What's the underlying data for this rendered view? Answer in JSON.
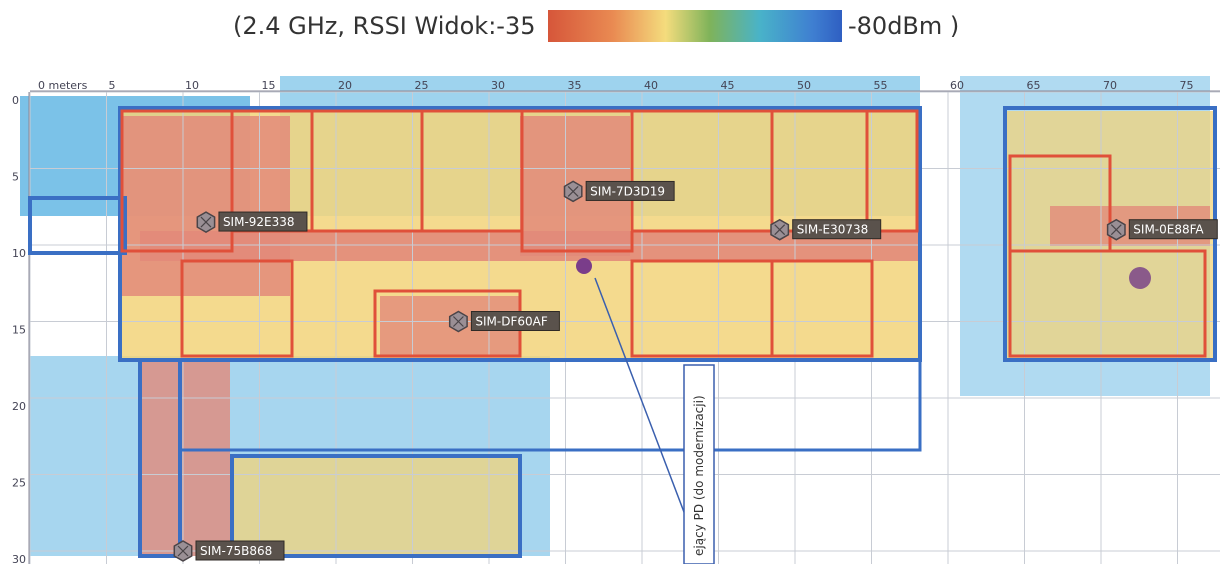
{
  "legend": {
    "left_text": "(2.4 GHz, RSSI Widok:-35",
    "right_text": "-80dBm )",
    "colors": [
      "#d6563a",
      "#e98a52",
      "#f4dc7d",
      "#7fb35a",
      "#49b3c9",
      "#3f7fd1",
      "#2f5fc2"
    ]
  },
  "map": {
    "x_unit_label": "0 meters",
    "x_ticks": [
      "5",
      "10",
      "15",
      "20",
      "25",
      "30",
      "35",
      "40",
      "45",
      "50",
      "55",
      "60",
      "65",
      "70",
      "75"
    ],
    "y_ticks": [
      "0",
      "5",
      "10",
      "15",
      "20",
      "25",
      "30"
    ],
    "access_points": [
      {
        "id": "SIM-92E338",
        "x_m": 11.5,
        "y_m": 8.5
      },
      {
        "id": "SIM-7D3D19",
        "x_m": 35.5,
        "y_m": 6.5
      },
      {
        "id": "SIM-E30738",
        "x_m": 49.0,
        "y_m": 9.0
      },
      {
        "id": "SIM-0E88FA",
        "x_m": 71.0,
        "y_m": 9.0
      },
      {
        "id": "SIM-DF60AF",
        "x_m": 28.0,
        "y_m": 15.0
      },
      {
        "id": "SIM-75B868",
        "x_m": 10.0,
        "y_m": 30.0
      }
    ],
    "callout_text": "ejący PD (do modernizacji)",
    "colors": {
      "wall_outer": "#3a6fc4",
      "wall_inner": "#e0503a",
      "grid": "#c8ccd4",
      "strong": "#e28a7a",
      "mid": "#f2d37a",
      "weak": "#8ec26a",
      "edge": "#4faee0"
    }
  }
}
